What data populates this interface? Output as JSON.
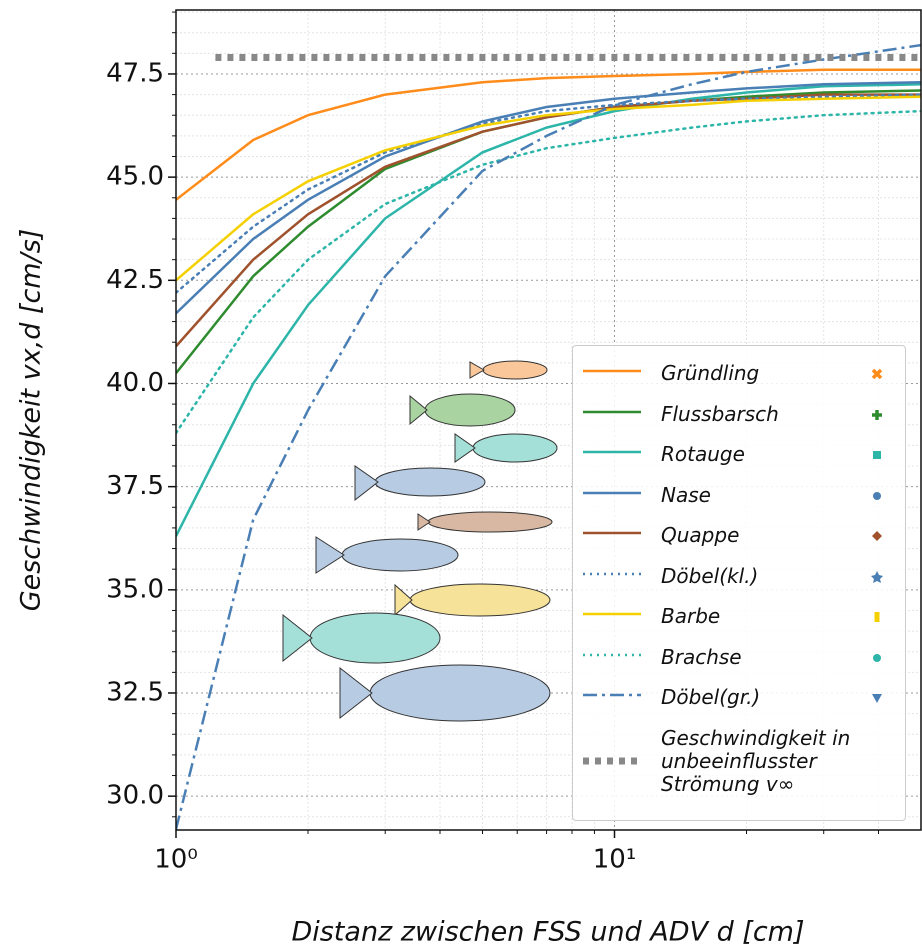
{
  "chart_data": {
    "type": "line",
    "ylabel": "Geschwindigkeit vx,d [cm/s]",
    "xlabel": "Distanz zwischen FSS und ADV d [cm]",
    "xscale": "log",
    "xlim": [
      1,
      50
    ],
    "ylim": [
      29.18,
      49.05
    ],
    "xticks": [
      {
        "value": 1,
        "label": "10⁰"
      },
      {
        "value": 10,
        "label": "10¹"
      }
    ],
    "x_minor_ticks": [
      2,
      3,
      4,
      5,
      6,
      7,
      8,
      9,
      20,
      30,
      40
    ],
    "yticks": [
      {
        "value": 30,
        "label": "30.0"
      },
      32.5,
      {
        "value": 35,
        "label": "35.0"
      },
      37.5,
      {
        "value": 40,
        "label": "40.0"
      },
      42.5,
      {
        "value": 45,
        "label": "45.0"
      },
      47.5
    ],
    "y_minor_ticks": [
      29.5,
      30.5,
      31,
      31.5,
      32,
      33,
      33.5,
      34,
      34.5,
      35.5,
      36,
      36.5,
      37,
      38,
      38.5,
      39,
      39.5,
      40.5,
      41,
      41.5,
      42,
      43,
      43.5,
      44,
      44.5,
      45.5,
      46,
      46.5,
      47,
      48,
      48.5,
      49
    ],
    "grid": true,
    "legend": "lower right",
    "x": [
      1,
      1.5,
      2,
      3,
      5,
      7,
      10,
      15,
      20,
      30,
      50
    ],
    "series": [
      {
        "name": "Gründling",
        "color": "#ff8c1a",
        "style": "solid",
        "values": [
          44.45,
          45.9,
          46.5,
          47.0,
          47.3,
          47.4,
          47.45,
          47.5,
          47.55,
          47.6,
          47.6
        ]
      },
      {
        "name": "Flussbarsch",
        "color": "#2e8b2e",
        "style": "solid",
        "values": [
          40.25,
          42.6,
          43.8,
          45.2,
          46.1,
          46.45,
          46.7,
          46.85,
          46.95,
          47.05,
          47.1
        ]
      },
      {
        "name": "Rotauge",
        "color": "#2cb5a8",
        "style": "solid",
        "values": [
          36.3,
          40.0,
          41.9,
          44.0,
          45.6,
          46.2,
          46.6,
          46.9,
          47.05,
          47.2,
          47.25
        ]
      },
      {
        "name": "Nase",
        "color": "#4a7fb5",
        "style": "solid",
        "values": [
          41.7,
          43.5,
          44.45,
          45.5,
          46.35,
          46.7,
          46.9,
          47.05,
          47.15,
          47.25,
          47.3
        ]
      },
      {
        "name": "Quappe",
        "color": "#a0522d",
        "style": "solid",
        "values": [
          40.9,
          43.0,
          44.1,
          45.25,
          46.1,
          46.45,
          46.7,
          46.85,
          46.9,
          47.0,
          47.0
        ]
      },
      {
        "name": "Döbel(kl.)",
        "color": "#4a7fb5",
        "style": "dotted",
        "values": [
          42.2,
          43.8,
          44.7,
          45.6,
          46.3,
          46.6,
          46.75,
          46.85,
          46.9,
          46.95,
          47.0
        ]
      },
      {
        "name": "Barbe",
        "color": "#f5d000",
        "style": "solid",
        "values": [
          42.5,
          44.1,
          44.9,
          45.65,
          46.25,
          46.5,
          46.65,
          46.75,
          46.85,
          46.9,
          46.95
        ]
      },
      {
        "name": "Brachse",
        "color": "#2cb5a8",
        "style": "dotted",
        "values": [
          38.8,
          41.6,
          43.0,
          44.35,
          45.3,
          45.7,
          45.95,
          46.2,
          46.35,
          46.5,
          46.6
        ]
      },
      {
        "name": "Döbel(gr.)",
        "color": "#4a7fb5",
        "style": "dashdot",
        "values": [
          29.2,
          36.7,
          39.35,
          42.6,
          45.15,
          46.0,
          46.75,
          47.25,
          47.55,
          47.85,
          48.2
        ]
      },
      {
        "name": "Geschwindigkeit in unbeeinflusster Strömung v∞",
        "color": "#888888",
        "style": "thickdotted",
        "x": [
          1.23,
          50
        ],
        "values": [
          47.9,
          47.9
        ]
      }
    ]
  }
}
